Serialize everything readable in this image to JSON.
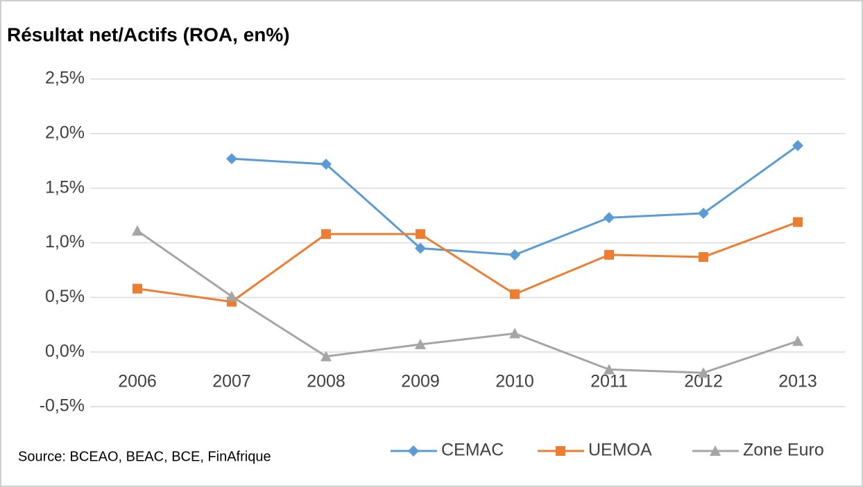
{
  "chart_data": {
    "type": "line",
    "title": "Résultat net/Actifs (ROA, en%)",
    "source": "Source: BCEAO, BEAC, BCE, FinAfrique",
    "categories": [
      "2006",
      "2007",
      "2008",
      "2009",
      "2010",
      "2011",
      "2012",
      "2013"
    ],
    "series": [
      {
        "name": "CEMAC",
        "color": "#5b9bd5",
        "marker": "diamond",
        "values": [
          null,
          1.77,
          1.72,
          0.95,
          0.89,
          1.23,
          1.27,
          1.89
        ]
      },
      {
        "name": "UEMOA",
        "color": "#ed7d31",
        "marker": "square",
        "values": [
          0.58,
          0.46,
          1.08,
          1.08,
          0.53,
          0.89,
          0.87,
          1.19
        ]
      },
      {
        "name": "Zone Euro",
        "color": "#a5a5a5",
        "marker": "triangle",
        "values": [
          1.11,
          0.51,
          -0.04,
          0.07,
          0.17,
          -0.16,
          -0.19,
          0.1
        ]
      }
    ],
    "ylim": [
      -0.5,
      2.5
    ],
    "yticks": [
      {
        "value": -0.5,
        "label": "-0,5%"
      },
      {
        "value": 0,
        "label": "0,0%"
      },
      {
        "value": 0.5,
        "label": "0,5%"
      },
      {
        "value": 1,
        "label": "1,0%"
      },
      {
        "value": 1.5,
        "label": "1,5%"
      },
      {
        "value": 2,
        "label": "2,0%"
      },
      {
        "value": 2.5,
        "label": "2,5%"
      }
    ],
    "grid": true,
    "legend": "bottom-right"
  }
}
